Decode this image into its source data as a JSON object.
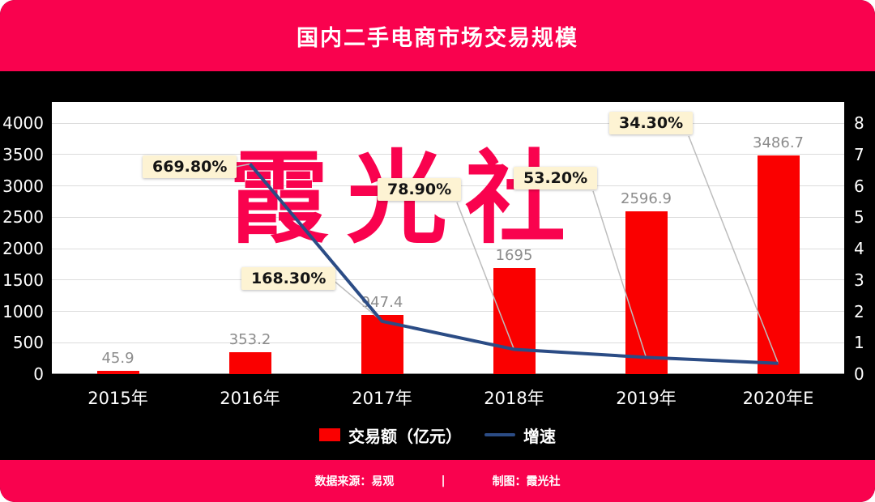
{
  "colors": {
    "brand_pink": "#f9024e",
    "bar_red": "#fa0000",
    "line_blue": "#2b4c85",
    "callout_bg": "#fdf3d3",
    "grid": "#dcdcdc",
    "bar_label": "#8c8c8c",
    "connector": "#bdbdbd"
  },
  "header": {
    "title": "国内二手电商市场交易规模"
  },
  "chart_data": {
    "type": "bar",
    "combo": "bar+line",
    "title": "国内二手电商市场交易规模",
    "categories": [
      "2015年",
      "2016年",
      "2017年",
      "2018年",
      "2019年",
      "2020年E"
    ],
    "series": [
      {
        "name": "交易额（亿元）",
        "type": "bar",
        "axis": "left",
        "values": [
          45.9,
          353.2,
          947.4,
          1695,
          2596.9,
          3486.7
        ],
        "value_labels": [
          "45.9",
          "353.2",
          "947.4",
          "1695",
          "2596.9",
          "3486.7"
        ]
      },
      {
        "name": "增速",
        "type": "line",
        "axis": "right",
        "values": [
          null,
          6.698,
          1.683,
          0.789,
          0.532,
          0.343
        ],
        "point_labels": [
          null,
          "669.80%",
          "168.30%",
          "78.90%",
          "53.20%",
          "34.30%"
        ]
      }
    ],
    "left_axis": {
      "min": 0,
      "max": 4000,
      "step": 500,
      "ticks": [
        0,
        500,
        1000,
        1500,
        2000,
        2500,
        3000,
        3500,
        4000
      ]
    },
    "right_axis": {
      "min": 0,
      "max": 8,
      "step": 1,
      "ticks": [
        0,
        1,
        2,
        3,
        4,
        5,
        6,
        7,
        8
      ]
    },
    "legend": [
      {
        "label": "交易额（亿元）",
        "marker": "bar"
      },
      {
        "label": "增速",
        "marker": "line"
      }
    ],
    "watermark": "霞光社",
    "grid": true,
    "legend_position": "bottom"
  },
  "footer": {
    "source": "数据来源：易观",
    "divider": "|",
    "credit": "制图：霞光社"
  }
}
